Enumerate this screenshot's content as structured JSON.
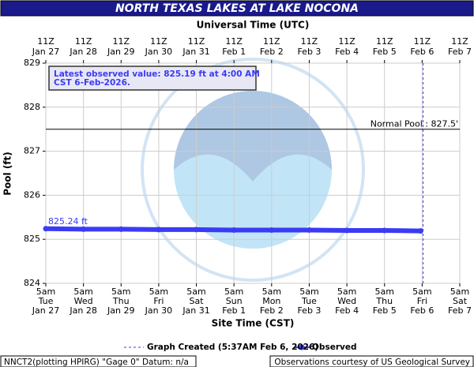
{
  "chart_data": {
    "type": "line",
    "title": "NORTH TEXAS LAKES AT LAKE NOCONA",
    "x2_label": "Universal Time (UTC)",
    "x_label": "Site Time (CST)",
    "y_label": "Pool (ft)",
    "ylim": [
      824,
      829
    ],
    "yticks": [
      824,
      825,
      826,
      827,
      828,
      829
    ],
    "xlim": [
      "2026-01-27T05:00",
      "2026-02-07T05:00"
    ],
    "xticks": [
      {
        "value": "2026-01-27T05:00",
        "label": [
          "5am",
          "Tue",
          "Jan 27"
        ]
      },
      {
        "value": "2026-01-28T05:00",
        "label": [
          "5am",
          "Wed",
          "Jan 28"
        ]
      },
      {
        "value": "2026-01-29T05:00",
        "label": [
          "5am",
          "Thu",
          "Jan 29"
        ]
      },
      {
        "value": "2026-01-30T05:00",
        "label": [
          "5am",
          "Fri",
          "Jan 30"
        ]
      },
      {
        "value": "2026-01-31T05:00",
        "label": [
          "5am",
          "Sat",
          "Jan 31"
        ]
      },
      {
        "value": "2026-02-01T05:00",
        "label": [
          "5am",
          "Sun",
          "Feb 1"
        ]
      },
      {
        "value": "2026-02-02T05:00",
        "label": [
          "5am",
          "Mon",
          "Feb 2"
        ]
      },
      {
        "value": "2026-02-03T05:00",
        "label": [
          "5am",
          "Tue",
          "Feb 3"
        ]
      },
      {
        "value": "2026-02-04T05:00",
        "label": [
          "5am",
          "Wed",
          "Feb 4"
        ]
      },
      {
        "value": "2026-02-05T05:00",
        "label": [
          "5am",
          "Thu",
          "Feb 5"
        ]
      },
      {
        "value": "2026-02-06T05:00",
        "label": [
          "5am",
          "Fri",
          "Feb 6"
        ]
      },
      {
        "value": "2026-02-07T05:00",
        "label": [
          "5am",
          "Sat",
          "Feb 7"
        ]
      }
    ],
    "x2ticks": [
      {
        "value": "2026-01-27T05:00",
        "label": [
          "11Z",
          "Jan 27"
        ]
      },
      {
        "value": "2026-01-28T05:00",
        "label": [
          "11Z",
          "Jan 28"
        ]
      },
      {
        "value": "2026-01-29T05:00",
        "label": [
          "11Z",
          "Jan 29"
        ]
      },
      {
        "value": "2026-01-30T05:00",
        "label": [
          "11Z",
          "Jan 30"
        ]
      },
      {
        "value": "2026-01-31T05:00",
        "label": [
          "11Z",
          "Jan 31"
        ]
      },
      {
        "value": "2026-02-01T05:00",
        "label": [
          "11Z",
          "Feb 1"
        ]
      },
      {
        "value": "2026-02-02T05:00",
        "label": [
          "11Z",
          "Feb 2"
        ]
      },
      {
        "value": "2026-02-03T05:00",
        "label": [
          "11Z",
          "Feb 3"
        ]
      },
      {
        "value": "2026-02-04T05:00",
        "label": [
          "11Z",
          "Feb 4"
        ]
      },
      {
        "value": "2026-02-05T05:00",
        "label": [
          "11Z",
          "Feb 5"
        ]
      },
      {
        "value": "2026-02-06T05:00",
        "label": [
          "11Z",
          "Feb 6"
        ]
      },
      {
        "value": "2026-02-07T05:00",
        "label": [
          "11Z",
          "Feb 7"
        ]
      }
    ],
    "grid": true,
    "series": [
      {
        "name": "Observed",
        "color": "#3b3bf5",
        "x": [
          "2026-01-27T05:00",
          "2026-01-28T05:00",
          "2026-01-29T05:00",
          "2026-01-30T05:00",
          "2026-01-31T05:00",
          "2026-02-01T05:00",
          "2026-02-02T05:00",
          "2026-02-03T05:00",
          "2026-02-04T05:00",
          "2026-02-05T05:00",
          "2026-02-06T04:00"
        ],
        "values": [
          825.24,
          825.23,
          825.23,
          825.22,
          825.22,
          825.21,
          825.21,
          825.21,
          825.2,
          825.2,
          825.19
        ]
      }
    ],
    "start_label": "825.24 ft",
    "latest_box": [
      "Latest observed value: 825.19 ft at 4:00 AM",
      "CST 6-Feb-2026."
    ],
    "normal_pool": {
      "value": 827.5,
      "label": "Normal Pool : 827.5'"
    },
    "created": {
      "x": "2026-02-06T05:37",
      "label": "Graph Created (5:37AM Feb 6, 2026)"
    },
    "footer_left": "NNCT2(plotting HPIRG) \"Gage 0\" Datum: n/a",
    "footer_right": "Observations courtesy of US Geological Survey"
  }
}
